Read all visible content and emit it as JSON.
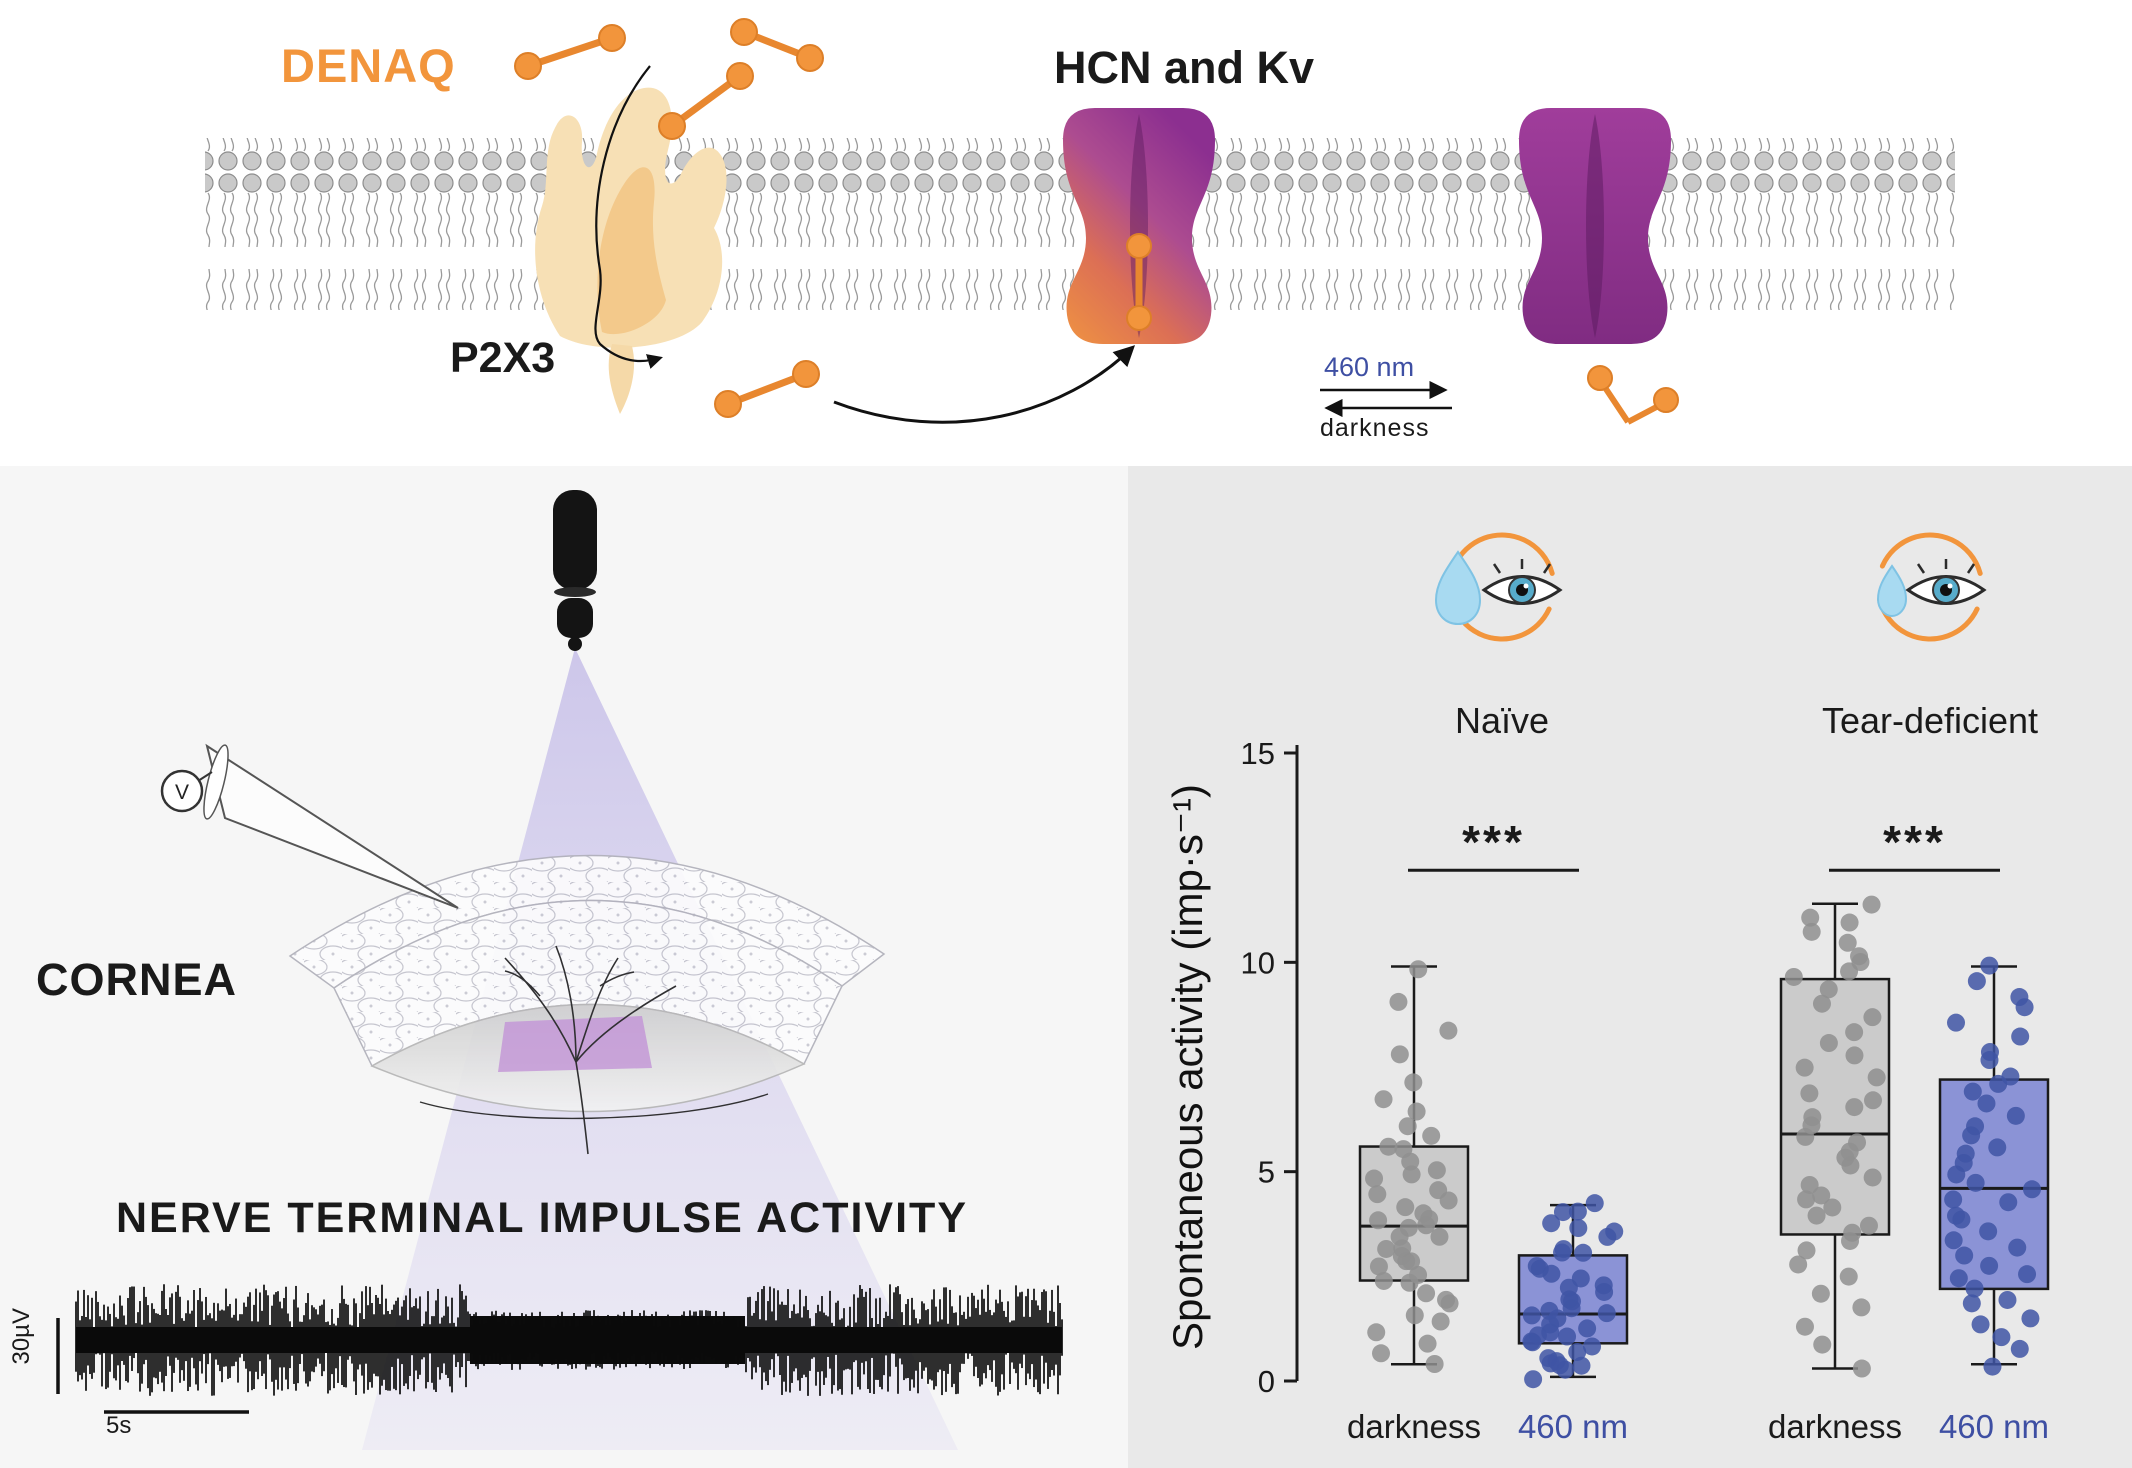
{
  "membrane": {
    "denaq_label": "DENAQ",
    "channels_label": "HCN and Kv",
    "receptor_label": "P2X3",
    "light_label": "460 nm",
    "dark_label": "darkness",
    "colors": {
      "denaq_orange": "#F2953C",
      "channel_purple": "#8F3190",
      "receptor_tan": "#F7E0B5",
      "light_blue_label": "#3E4FA3"
    }
  },
  "cornea_panel": {
    "cornea_label": "CORNEA",
    "activity_label": "NERVE TERMINAL IMPULSE ACTIVITY",
    "voltmeter_label": "V",
    "scale_voltage": "30µV",
    "scale_time": "5s"
  },
  "chart_data": {
    "type": "box",
    "title": "",
    "ylabel": "Spontaneous activity (imp·s⁻¹)",
    "xlabel": "",
    "ylim": [
      0,
      15
    ],
    "yticks": [
      0,
      5,
      10,
      15
    ],
    "grid": false,
    "sig_line_value": 12.2,
    "series_conditions": [
      "darkness",
      "460 nm"
    ],
    "groups": [
      {
        "name": "Naïve",
        "significance": "***",
        "series": [
          {
            "label": "darkness",
            "box_color": "#cbcbcb",
            "point_color": "#8f8f8f",
            "label_color": "#1a1a1a",
            "stats": {
              "whisker_low": 0.4,
              "q1": 2.4,
              "median": 3.7,
              "q3": 5.6,
              "whisker_high": 9.9
            },
            "points": [
              0.4,
              0.7,
              0.9,
              1.2,
              1.4,
              1.6,
              1.8,
              2.0,
              2.1,
              2.3,
              2.4,
              2.5,
              2.7,
              2.8,
              2.9,
              3.0,
              3.1,
              3.2,
              3.4,
              3.5,
              3.6,
              3.7,
              3.8,
              3.9,
              4.0,
              4.2,
              4.3,
              4.5,
              4.6,
              4.8,
              5.0,
              5.1,
              5.3,
              5.5,
              5.6,
              5.8,
              6.1,
              6.4,
              6.8,
              7.2,
              7.8,
              8.4,
              9.1,
              9.9
            ]
          },
          {
            "label": "460 nm",
            "box_color": "#8b93d6",
            "point_color": "#3f55a5",
            "label_color": "#3E4FA3",
            "stats": {
              "whisker_low": 0.1,
              "q1": 0.9,
              "median": 1.6,
              "q3": 3.0,
              "whisker_high": 4.2
            },
            "points": [
              0.1,
              0.2,
              0.3,
              0.4,
              0.4,
              0.5,
              0.6,
              0.7,
              0.8,
              0.9,
              1.0,
              1.0,
              1.1,
              1.2,
              1.3,
              1.4,
              1.5,
              1.5,
              1.6,
              1.7,
              1.8,
              1.9,
              2.0,
              2.1,
              2.2,
              2.3,
              2.4,
              2.6,
              2.7,
              2.8,
              3.0,
              3.1,
              3.2,
              3.4,
              3.5,
              3.7,
              3.8,
              4.0,
              4.1,
              4.2
            ]
          }
        ]
      },
      {
        "name": "Tear-deficient",
        "significance": "***",
        "series": [
          {
            "label": "darkness",
            "box_color": "#cbcbcb",
            "point_color": "#8f8f8f",
            "label_color": "#1a1a1a",
            "stats": {
              "whisker_low": 0.3,
              "q1": 3.5,
              "median": 5.9,
              "q3": 9.6,
              "whisker_high": 11.4
            },
            "points": [
              0.3,
              0.9,
              1.3,
              1.7,
              2.1,
              2.5,
              2.8,
              3.1,
              3.3,
              3.5,
              3.7,
              3.9,
              4.1,
              4.3,
              4.5,
              4.7,
              4.9,
              5.1,
              5.3,
              5.5,
              5.7,
              5.9,
              6.1,
              6.3,
              6.5,
              6.7,
              6.9,
              7.2,
              7.5,
              7.8,
              8.1,
              8.4,
              8.7,
              9.0,
              9.3,
              9.6,
              9.8,
              10.0,
              10.2,
              10.5,
              10.7,
              10.9,
              11.1,
              11.4
            ]
          },
          {
            "label": "460 nm",
            "box_color": "#8b93d6",
            "point_color": "#3f55a5",
            "label_color": "#3E4FA3",
            "stats": {
              "whisker_low": 0.4,
              "q1": 2.2,
              "median": 4.6,
              "q3": 7.2,
              "whisker_high": 9.9
            },
            "points": [
              0.4,
              0.7,
              1.0,
              1.3,
              1.5,
              1.8,
              2.0,
              2.2,
              2.4,
              2.6,
              2.8,
              3.0,
              3.2,
              3.4,
              3.6,
              3.8,
              4.0,
              4.2,
              4.4,
              4.6,
              4.8,
              5.0,
              5.2,
              5.4,
              5.6,
              5.9,
              6.1,
              6.4,
              6.6,
              6.9,
              7.1,
              7.3,
              7.6,
              7.9,
              8.2,
              8.5,
              8.9,
              9.2,
              9.5,
              9.9
            ]
          }
        ]
      }
    ]
  }
}
